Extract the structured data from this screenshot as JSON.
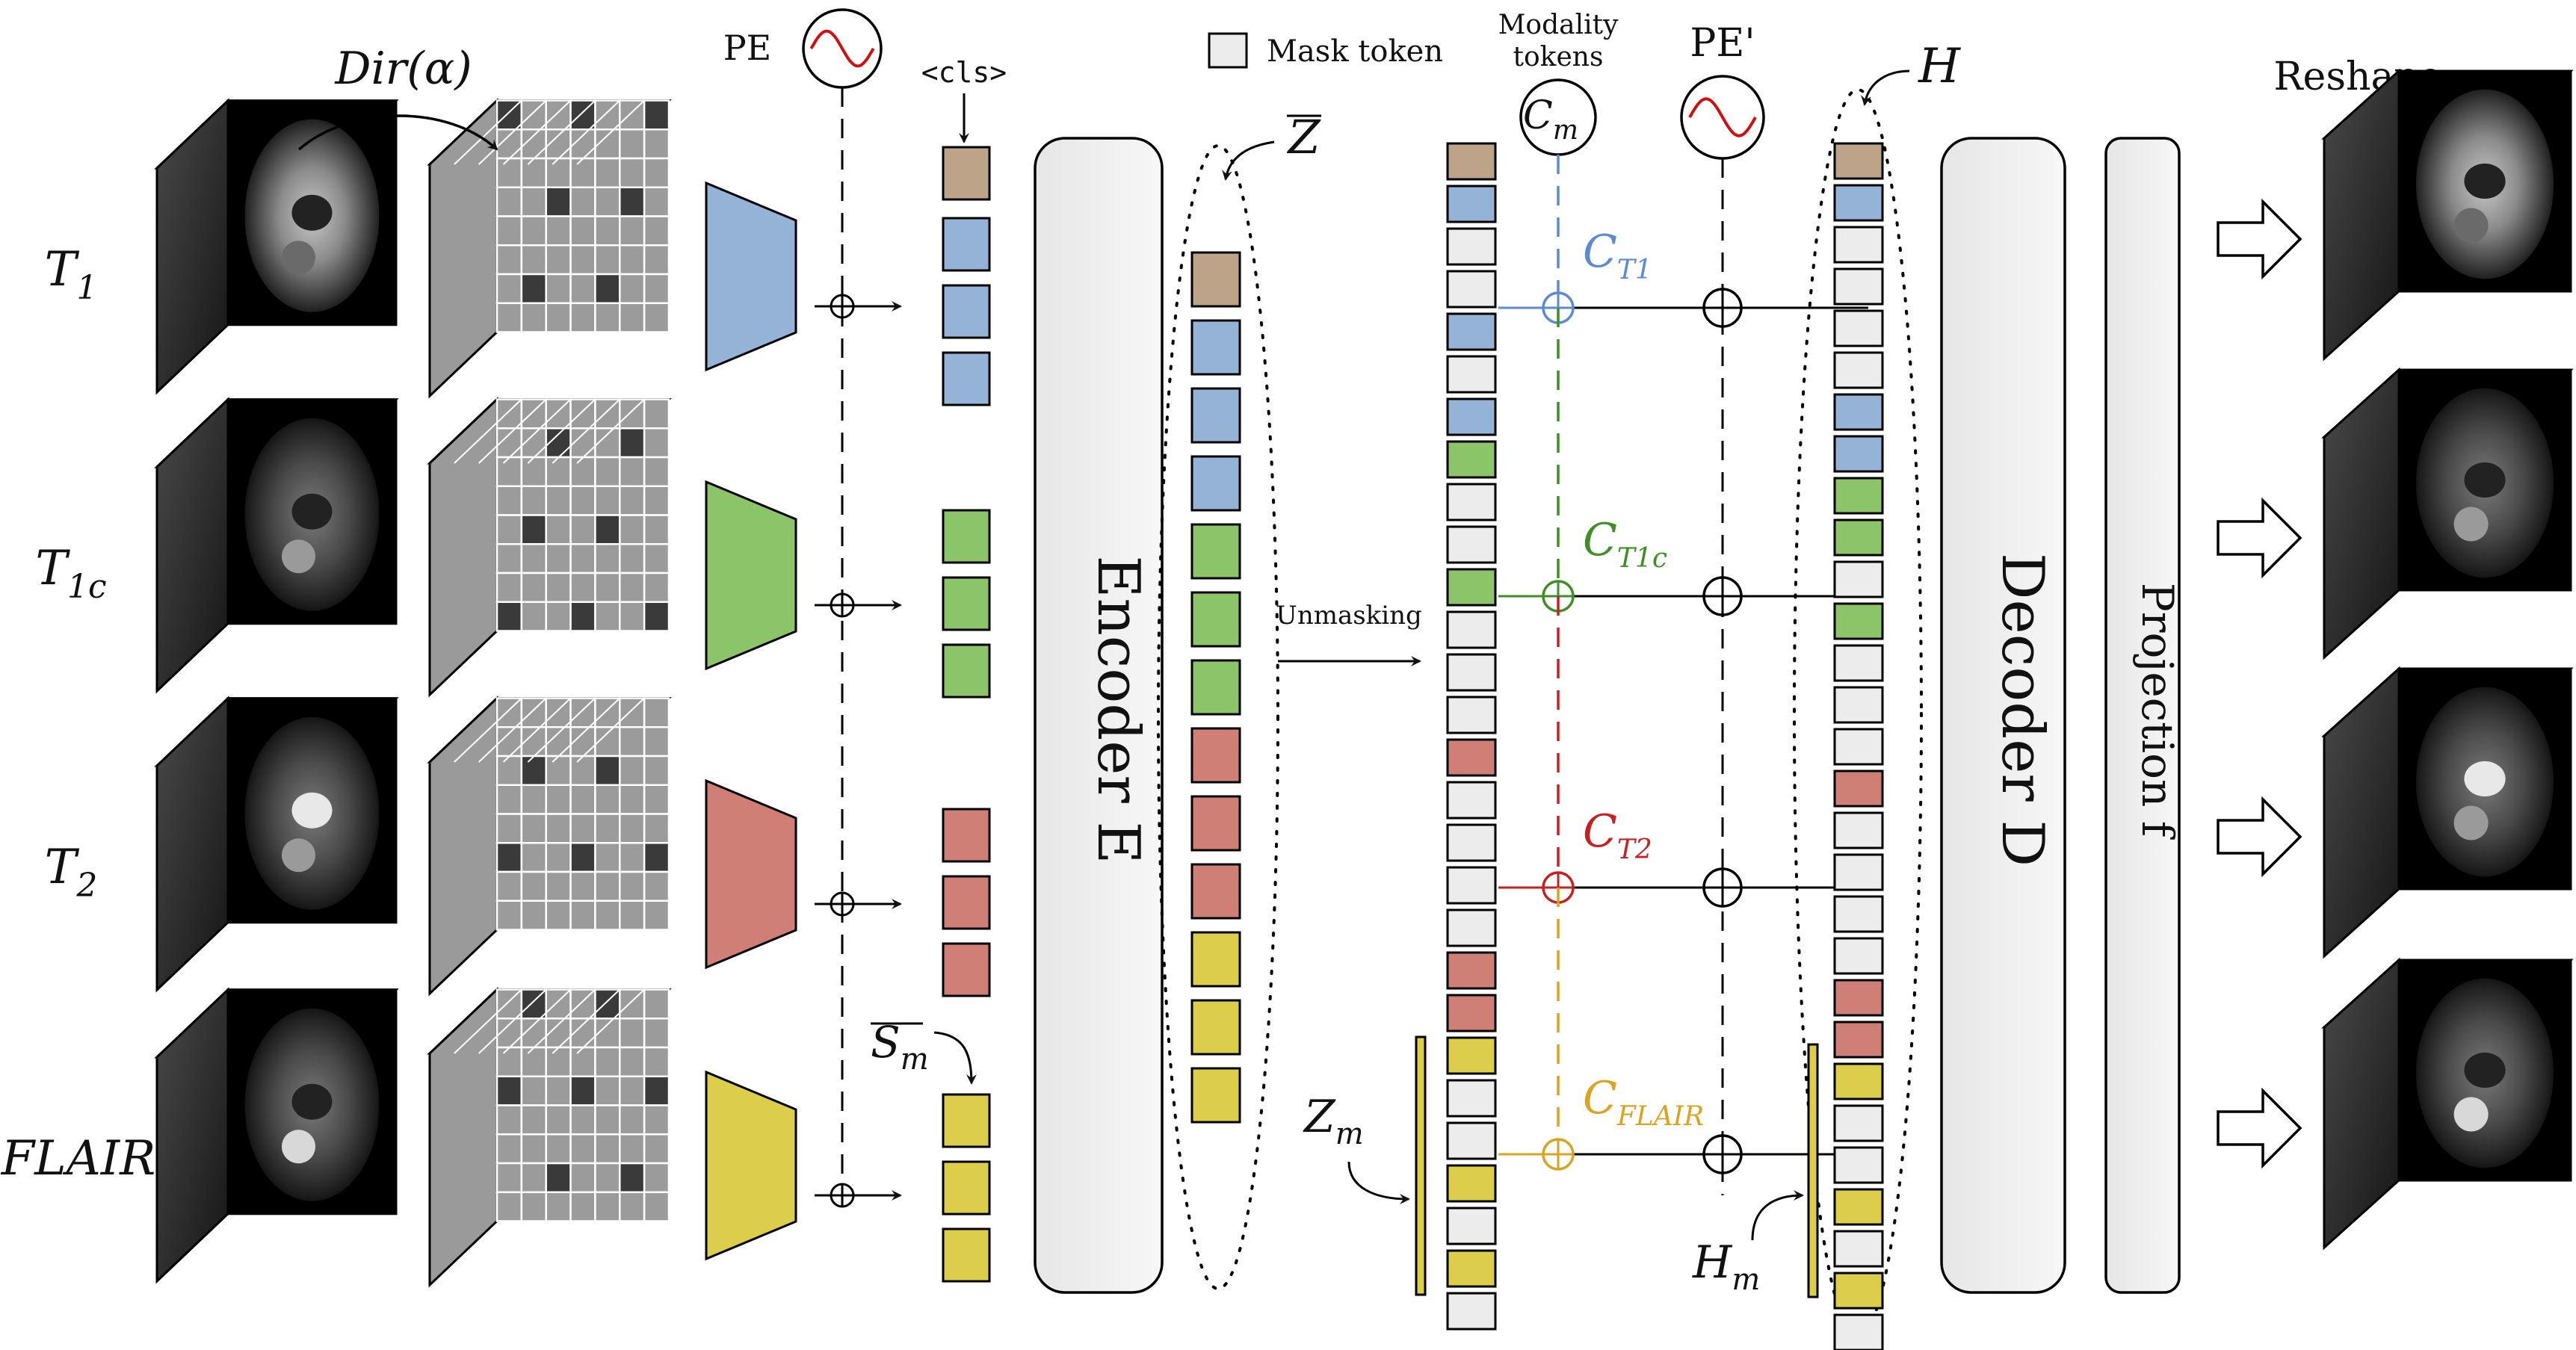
{
  "dirichlet_label": "Dir(α)",
  "pe_label": "PE",
  "pe2_label": "PE'",
  "cls_label": "<cls>",
  "mask_token_label": "Mask token",
  "modality_tokens_label": [
    "Modality",
    "tokens"
  ],
  "cm_label": "C",
  "cm_sub": "m",
  "zbar_label": "Z",
  "h_label": "H",
  "reshape_label": "Reshape",
  "unmasking_label": "Unmasking",
  "encoder_label": "Encoder E",
  "decoder_label": "Decoder D",
  "projection_label": "Projection f",
  "sm_label": "S",
  "sm_sub": "m",
  "zm_label": "Z",
  "zm_sub": "m",
  "hm_label": "H",
  "hm_sub": "m",
  "modalities": [
    {
      "name": "T",
      "sub": "1",
      "color": "#95b3d7",
      "code_sub": "T1",
      "code_color": "#5b8bd0"
    },
    {
      "name": "T",
      "sub": "1c",
      "color": "#8cc46a",
      "code_sub": "T1c",
      "code_color": "#3f8f26"
    },
    {
      "name": "T",
      "sub": "2",
      "color": "#d07f77",
      "code_sub": "T2",
      "code_color": "#c62020"
    },
    {
      "name": "FLAIR",
      "sub": "",
      "color": "#dccd4a",
      "code_sub": "FLAIR",
      "code_color": "#d9a520"
    }
  ],
  "colors": {
    "cls": "#bda387",
    "mask": "#ececec",
    "t1": "#95b3d7",
    "t1c": "#8cc46a",
    "t2": "#d07f77",
    "flair": "#dccd4a"
  },
  "z_column": [
    "cls",
    "t1",
    "t1",
    "t1",
    "t1c",
    "t1c",
    "t1c",
    "t2",
    "t2",
    "t2",
    "flair",
    "flair",
    "flair"
  ],
  "unmasked_column": [
    "cls",
    "t1",
    "mask",
    "mask",
    "t1",
    "mask",
    "t1",
    "t1c",
    "mask",
    "mask",
    "t1c",
    "mask",
    "mask",
    "mask",
    "t2",
    "mask",
    "mask",
    "mask",
    "mask",
    "t2",
    "t2",
    "flair",
    "mask",
    "mask",
    "flair",
    "mask",
    "flair",
    "mask"
  ],
  "h_column": [
    "cls",
    "t1",
    "mask",
    "mask",
    "mask",
    "mask",
    "t1",
    "t1",
    "t1c",
    "t1c",
    "mask",
    "t1c",
    "mask",
    "mask",
    "mask",
    "t2",
    "mask",
    "mask",
    "mask",
    "mask",
    "t2",
    "t2",
    "flair",
    "mask",
    "mask",
    "flair",
    "mask",
    "flair",
    "mask"
  ]
}
